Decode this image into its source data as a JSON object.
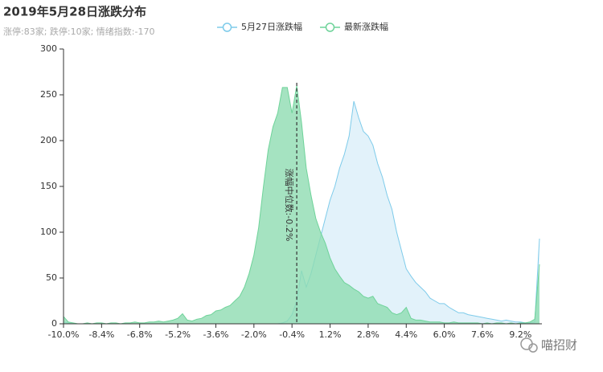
{
  "chart_data": {
    "type": "area",
    "title": "2019年5月28日涨跌分布",
    "subtitle": "涨停:83家; 跌停:10家; 情绪指数:-170",
    "watermark": "喵招财",
    "x": [
      -10.0,
      -9.8,
      -9.6,
      -9.4,
      -9.2,
      -9.0,
      -8.8,
      -8.6,
      -8.4,
      -8.2,
      -8.0,
      -7.8,
      -7.6,
      -7.4,
      -7.2,
      -7.0,
      -6.8,
      -6.6,
      -6.4,
      -6.2,
      -6.0,
      -5.8,
      -5.6,
      -5.4,
      -5.2,
      -5.0,
      -4.8,
      -4.6,
      -4.4,
      -4.2,
      -4.0,
      -3.8,
      -3.6,
      -3.4,
      -3.2,
      -3.0,
      -2.8,
      -2.6,
      -2.4,
      -2.2,
      -2.0,
      -1.8,
      -1.6,
      -1.4,
      -1.2,
      -1.0,
      -0.8,
      -0.6,
      -0.4,
      -0.2,
      0.0,
      0.2,
      0.4,
      0.6,
      0.8,
      1.0,
      1.2,
      1.4,
      1.6,
      1.8,
      2.0,
      2.2,
      2.4,
      2.6,
      2.8,
      3.0,
      3.2,
      3.4,
      3.6,
      3.8,
      4.0,
      4.2,
      4.4,
      4.6,
      4.8,
      5.0,
      5.2,
      5.4,
      5.6,
      5.8,
      6.0,
      6.2,
      6.4,
      6.6,
      6.8,
      7.0,
      7.2,
      7.4,
      7.6,
      7.8,
      8.0,
      8.2,
      8.4,
      8.6,
      8.8,
      9.0,
      9.2,
      9.4,
      9.6,
      9.8,
      10.0
    ],
    "series": [
      {
        "name": "5月27日涨跌幅",
        "color": "#7ecbea",
        "fill": "#dff1fa",
        "values": [
          2,
          1,
          0,
          0,
          0,
          0,
          0,
          0,
          0,
          0,
          0,
          0,
          0,
          0,
          0,
          0,
          0,
          0,
          0,
          0,
          0,
          0,
          0,
          0,
          0,
          0,
          0,
          0,
          0,
          0,
          0,
          0,
          0,
          0,
          0,
          0,
          0,
          0,
          0,
          0,
          0,
          0,
          0,
          0,
          0,
          0,
          1,
          3,
          10,
          25,
          58,
          40,
          55,
          75,
          95,
          115,
          135,
          150,
          170,
          185,
          205,
          243,
          225,
          210,
          205,
          195,
          175,
          160,
          140,
          125,
          100,
          80,
          60,
          52,
          45,
          40,
          35,
          28,
          25,
          22,
          22,
          18,
          15,
          12,
          12,
          10,
          9,
          8,
          7,
          6,
          5,
          4,
          3,
          4,
          3,
          2,
          2,
          1,
          1,
          2,
          93
        ]
      },
      {
        "name": "最新涨跌幅",
        "color": "#6fd39a",
        "fill": "#8fdcb2",
        "values": [
          8,
          2,
          1,
          0,
          0,
          1,
          0,
          1,
          1,
          0,
          1,
          1,
          0,
          1,
          1,
          2,
          1,
          1,
          2,
          2,
          3,
          2,
          3,
          4,
          6,
          11,
          4,
          3,
          5,
          6,
          9,
          10,
          14,
          15,
          18,
          20,
          25,
          30,
          40,
          55,
          75,
          105,
          150,
          190,
          215,
          230,
          258,
          258,
          230,
          260,
          220,
          170,
          140,
          115,
          100,
          88,
          72,
          60,
          52,
          45,
          42,
          38,
          35,
          30,
          28,
          30,
          22,
          20,
          18,
          12,
          10,
          12,
          18,
          6,
          4,
          4,
          3,
          2,
          2,
          2,
          1,
          1,
          2,
          1,
          1,
          1,
          1,
          1,
          0,
          1,
          0,
          1,
          1,
          0,
          1,
          0,
          1,
          1,
          2,
          5,
          65
        ]
      }
    ],
    "markline": {
      "value": -0.2,
      "label": "涨幅中位数:-0.2%"
    },
    "xlim": [
      -10,
      10.1
    ],
    "xticks": [
      {
        "value": -10.0,
        "label": "-10.0%"
      },
      {
        "value": -8.4,
        "label": "-8.4%"
      },
      {
        "value": -6.8,
        "label": "-6.8%"
      },
      {
        "value": -5.2,
        "label": "-5.2%"
      },
      {
        "value": -3.6,
        "label": "-3.6%"
      },
      {
        "value": -2.0,
        "label": "-2.0%"
      },
      {
        "value": -0.4,
        "label": "-0.4%"
      },
      {
        "value": 1.2,
        "label": "1.2%"
      },
      {
        "value": 2.8,
        "label": "2.8%"
      },
      {
        "value": 4.4,
        "label": "4.4%"
      },
      {
        "value": 6.0,
        "label": "6.0%"
      },
      {
        "value": 7.6,
        "label": "7.6%"
      },
      {
        "value": 9.2,
        "label": "9.2%"
      }
    ],
    "ylim": [
      0,
      300
    ],
    "yticks": [
      0,
      50,
      100,
      150,
      200,
      250,
      300
    ]
  }
}
